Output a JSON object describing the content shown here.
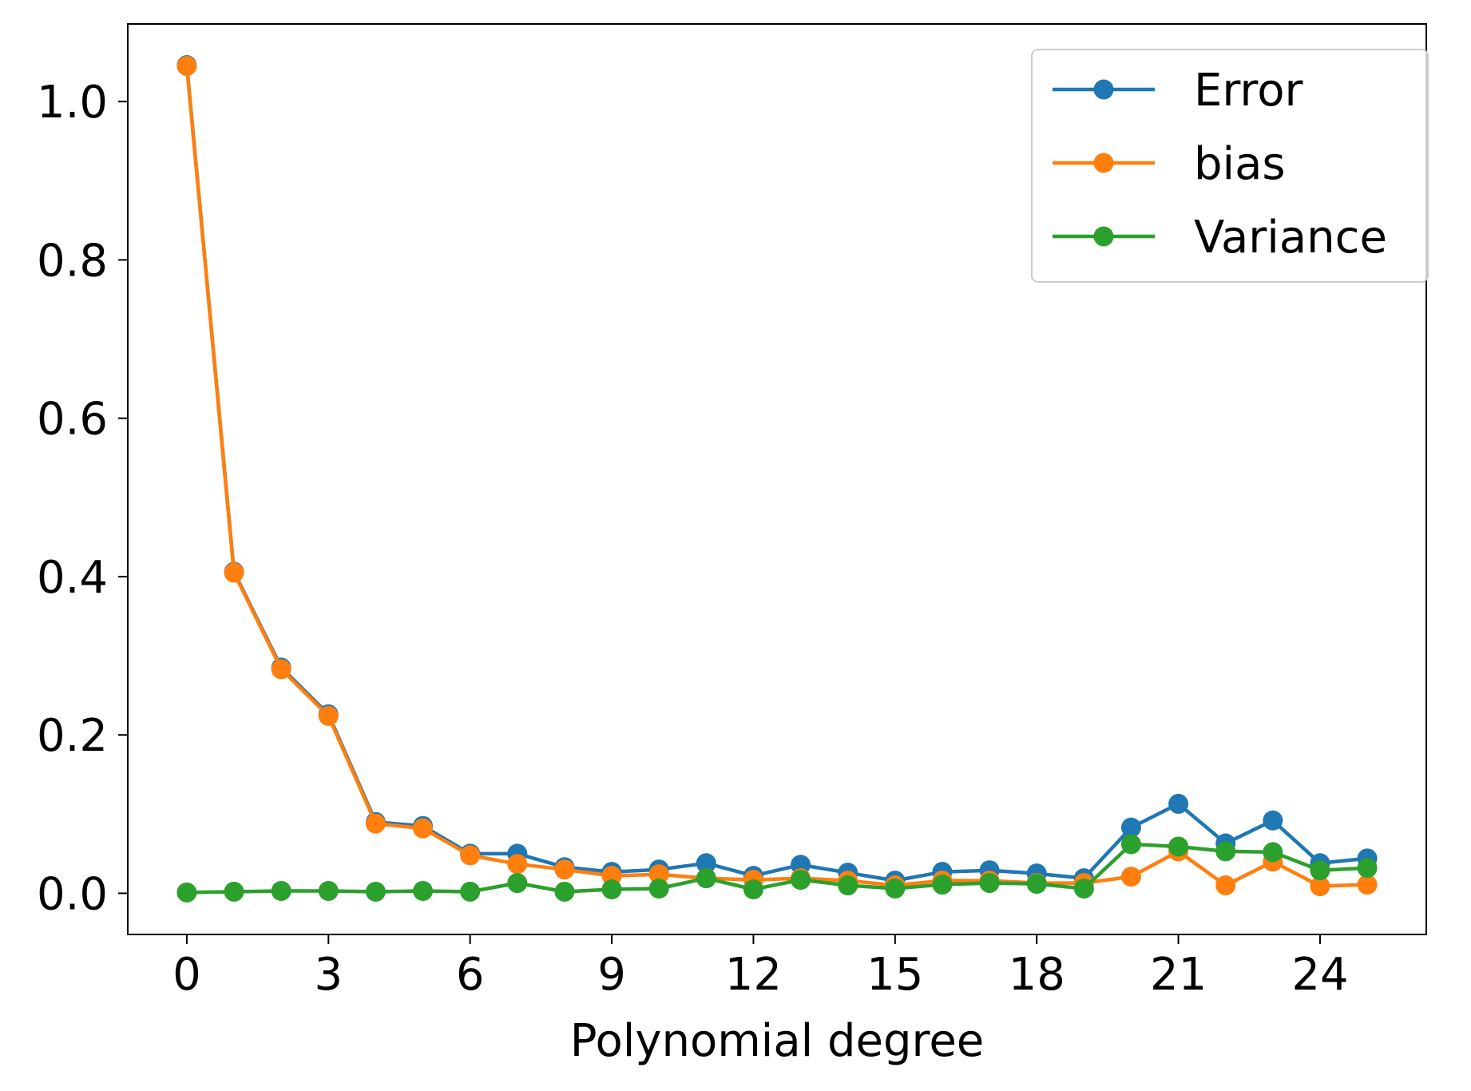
{
  "chart_data": {
    "type": "line",
    "title": "",
    "xlabel": "Polynomial degree",
    "ylabel": "",
    "x": [
      0,
      1,
      2,
      3,
      4,
      5,
      6,
      7,
      8,
      9,
      10,
      11,
      12,
      13,
      14,
      15,
      16,
      17,
      18,
      19,
      20,
      21,
      22,
      23,
      24,
      25
    ],
    "xlim": [
      -1.25,
      26.25
    ],
    "ylim": [
      -0.052,
      1.098
    ],
    "xticks": [
      0,
      3,
      6,
      9,
      12,
      15,
      18,
      21,
      24
    ],
    "xtick_labels": [
      "0",
      "3",
      "6",
      "9",
      "12",
      "15",
      "18",
      "21",
      "24"
    ],
    "yticks": [
      0.0,
      0.2,
      0.4,
      0.6,
      0.8,
      1.0
    ],
    "ytick_labels": [
      "0.0",
      "0.2",
      "0.4",
      "0.6",
      "0.8",
      "1.0"
    ],
    "grid": false,
    "legend_position": "top-right",
    "series": [
      {
        "name": "Error",
        "color": "#1f77b4",
        "marker": "circle",
        "values": [
          1.046,
          0.406,
          0.285,
          0.226,
          0.09,
          0.085,
          0.05,
          0.05,
          0.033,
          0.027,
          0.03,
          0.038,
          0.022,
          0.036,
          0.026,
          0.016,
          0.027,
          0.029,
          0.025,
          0.019,
          0.083,
          0.113,
          0.063,
          0.092,
          0.038,
          0.044
        ]
      },
      {
        "name": "bias",
        "color": "#ff7f0e",
        "marker": "circle",
        "values": [
          1.045,
          0.405,
          0.283,
          0.224,
          0.088,
          0.082,
          0.048,
          0.037,
          0.03,
          0.022,
          0.024,
          0.019,
          0.017,
          0.019,
          0.016,
          0.01,
          0.016,
          0.016,
          0.013,
          0.013,
          0.021,
          0.053,
          0.01,
          0.04,
          0.009,
          0.011
        ]
      },
      {
        "name": "Variance",
        "color": "#2ca02c",
        "marker": "circle",
        "values": [
          0.001,
          0.002,
          0.003,
          0.003,
          0.002,
          0.003,
          0.002,
          0.013,
          0.002,
          0.005,
          0.006,
          0.019,
          0.005,
          0.017,
          0.01,
          0.006,
          0.011,
          0.013,
          0.012,
          0.006,
          0.062,
          0.059,
          0.053,
          0.052,
          0.029,
          0.032
        ]
      }
    ]
  }
}
